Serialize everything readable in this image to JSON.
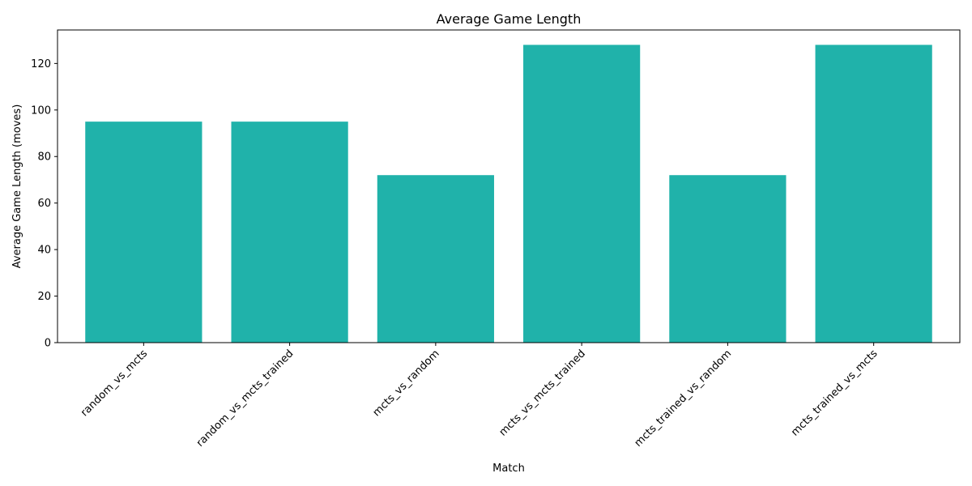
{
  "chart_data": {
    "type": "bar",
    "title": "Average Game Length",
    "xlabel": "Match",
    "ylabel": "Average Game Length (moves)",
    "categories": [
      "random_vs_mcts",
      "random_vs_mcts_trained",
      "mcts_vs_random",
      "mcts_vs_mcts_trained",
      "mcts_trained_vs_random",
      "mcts_trained_vs_mcts"
    ],
    "values": [
      95,
      95,
      72,
      128,
      72,
      128
    ],
    "ylim": [
      0,
      134.4
    ],
    "yticks": [
      0,
      20,
      40,
      60,
      80,
      100,
      120
    ],
    "bar_color": "#20b2aa",
    "grid": false,
    "x_tick_rotation": 45
  }
}
